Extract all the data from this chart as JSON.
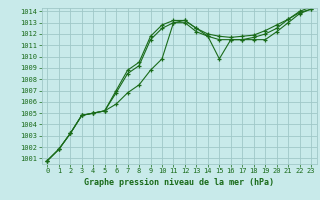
{
  "title": "Graphe pression niveau de la mer (hPa)",
  "bg_color": "#c8eaea",
  "grid_color": "#a0c8c8",
  "line_color": "#1a6b1a",
  "x_ticks": [
    0,
    1,
    2,
    3,
    4,
    5,
    6,
    7,
    8,
    9,
    10,
    11,
    12,
    13,
    14,
    15,
    16,
    17,
    18,
    19,
    20,
    21,
    22,
    23
  ],
  "y_min": 1001,
  "y_max": 1014,
  "y_ticks": [
    1001,
    1002,
    1003,
    1004,
    1005,
    1006,
    1007,
    1008,
    1009,
    1010,
    1011,
    1012,
    1013,
    1014
  ],
  "series": [
    [
      1000.8,
      1001.8,
      1003.2,
      1004.8,
      1005.0,
      1005.2,
      1005.8,
      1006.8,
      1007.5,
      1008.8,
      1009.8,
      1013.0,
      1013.2,
      1012.5,
      1011.8,
      1009.8,
      1011.5,
      1011.5,
      1011.5,
      1011.5,
      1012.2,
      1013.0,
      1013.8,
      1014.2
    ],
    [
      1000.8,
      1001.8,
      1003.2,
      1004.8,
      1005.0,
      1005.2,
      1007.0,
      1008.8,
      1009.5,
      1011.8,
      1012.8,
      1013.2,
      1013.2,
      1012.5,
      1012.0,
      1011.8,
      1011.7,
      1011.8,
      1011.9,
      1012.3,
      1012.8,
      1013.3,
      1014.0,
      1014.4
    ],
    [
      1000.8,
      1001.8,
      1003.2,
      1004.8,
      1005.0,
      1005.2,
      1006.8,
      1008.5,
      1009.2,
      1011.5,
      1012.5,
      1013.0,
      1013.0,
      1012.2,
      1011.8,
      1011.5,
      1011.5,
      1011.5,
      1011.7,
      1012.0,
      1012.5,
      1013.3,
      1013.9,
      1014.2
    ]
  ],
  "figsize": [
    3.2,
    2.0
  ],
  "dpi": 100,
  "title_fontsize": 6,
  "tick_fontsize": 5,
  "ylabel_fontsize": 5
}
